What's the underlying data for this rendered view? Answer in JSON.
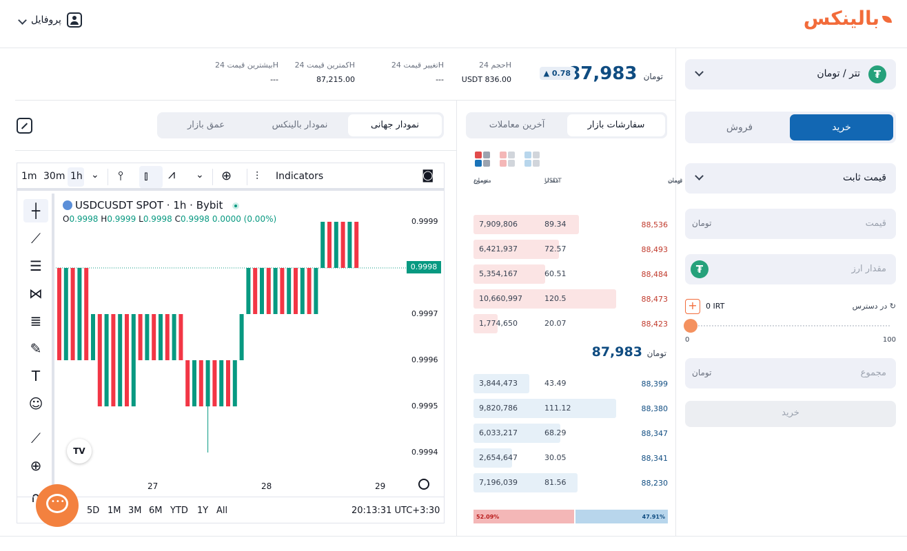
{
  "header": {
    "logo_text": "بالینکس",
    "profile_label": "پروفایل"
  },
  "stats": {
    "last_price": "87,983",
    "change": "0.78",
    "currency": "تومان",
    "volume_label": "حجم 24H",
    "volume_value": "836.00",
    "volume_unit": "USDT",
    "change24_label": "تغییر قیمت 24H",
    "change24_value": "---",
    "low_label": "کمترین قیمت 24H",
    "low_value": "87,215.00",
    "high_label": "بیشترین قیمت 24H",
    "high_value": "---"
  },
  "trade_panel": {
    "pair": "تتر / تومان",
    "buy_tab": "خرید",
    "sell_tab": "فروش",
    "order_type": "قیمت ثابت",
    "price_placeholder": "قیمت",
    "amount_placeholder": "مقدار ارز",
    "available_label": "در دسترس",
    "available_value": "0",
    "available_unit": "IRT",
    "slider_min": "0",
    "slider_max": "100",
    "slider_value": 0,
    "total_placeholder": "مجموع",
    "submit_label": "خرید",
    "toman_symbol": "تومان"
  },
  "orderbook": {
    "tab_orders": "سفارشات بازار",
    "tab_trades": "آخرین معاملات",
    "col_price": "قیمت",
    "col_amount": "مقدار",
    "col_amount_unit": "USDT",
    "col_total": "مجموع",
    "asks": [
      {
        "total": "7,909,806",
        "amount": "89.34",
        "price": "88,536",
        "depth": 0.74
      },
      {
        "total": "6,421,937",
        "amount": "72.57",
        "price": "88,493",
        "depth": 0.6
      },
      {
        "total": "5,354,167",
        "amount": "60.51",
        "price": "88,484",
        "depth": 0.5
      },
      {
        "total": "10,660,997",
        "amount": "120.5",
        "price": "88,473",
        "depth": 1.0
      },
      {
        "total": "1,774,650",
        "amount": "20.07",
        "price": "88,423",
        "depth": 0.17
      }
    ],
    "mid_price": "87,983",
    "bids": [
      {
        "total": "3,844,473",
        "amount": "43.49",
        "price": "88,399",
        "depth": 0.39
      },
      {
        "total": "9,820,786",
        "amount": "111.12",
        "price": "88,380",
        "depth": 1.0
      },
      {
        "total": "6,033,217",
        "amount": "68.29",
        "price": "88,347",
        "depth": 0.61
      },
      {
        "total": "2,654,647",
        "amount": "30.05",
        "price": "88,341",
        "depth": 0.27
      },
      {
        "total": "7,196,039",
        "amount": "81.56",
        "price": "88,230",
        "depth": 0.73
      }
    ],
    "sell_ratio": "52.09%",
    "buy_ratio": "47.91%",
    "sell_ratio_value": 52.09
  },
  "chart_tabs": {
    "global": "نمودار جهانی",
    "balinex": "نمودار بالینکس",
    "depth": "عمق بازار"
  },
  "tradingview": {
    "intervals": [
      "1m",
      "30m",
      "1h"
    ],
    "indicators_label": "Indicators",
    "symbol_title": "USDCUSDT SPOT · 1h · Bybit",
    "ohlc": {
      "O": "0.9998",
      "H": "0.9999",
      "L": "0.9998",
      "C": "0.9998",
      "chg": "0.0000 (0.00%)"
    },
    "ranges": [
      "5D",
      "1M",
      "3M",
      "6M",
      "YTD",
      "1Y",
      "All"
    ],
    "clock": "20:13:31 UTC+3:30",
    "y_ticks": [
      "0.9999",
      "0.9997",
      "0.9996",
      "0.9995",
      "0.9994"
    ],
    "current_price_tag": "0.9998",
    "x_ticks": [
      "27",
      "28",
      "29"
    ]
  },
  "colors": {
    "accent": "#1267b3",
    "brand": "#f26b3a",
    "up": "#089981",
    "down": "#f23645",
    "ask_bg": "#fbe4e4",
    "bid_bg": "#e6f0f8"
  }
}
